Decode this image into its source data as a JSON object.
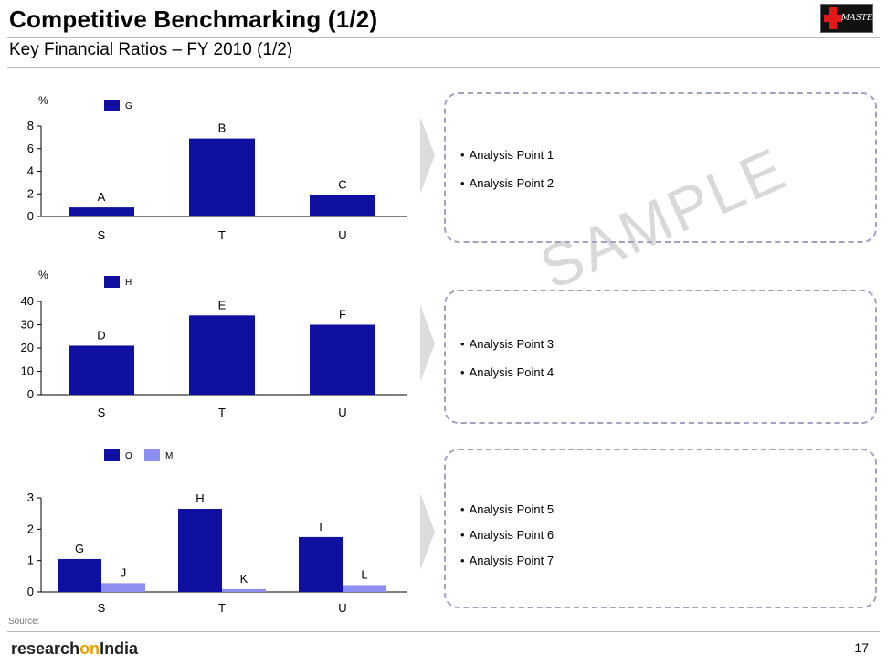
{
  "header": {
    "title": "Competitive Benchmarking (1/2)",
    "subtitle": "Key Financial Ratios – FY 2010 (1/2)",
    "logo_text": "MASTERS"
  },
  "colors": {
    "dark_blue": "#1010a0",
    "light_blue": "#8c8ef0"
  },
  "chart_data": [
    {
      "type": "bar",
      "ylabel": "%",
      "categories": [
        "S",
        "T",
        "U"
      ],
      "ylim": [
        0,
        8
      ],
      "yticks": [
        0,
        2,
        4,
        6,
        8
      ],
      "series": [
        {
          "name": "G",
          "color": "#1010a0",
          "values": [
            0.8,
            6.9,
            1.9
          ],
          "labels": [
            "A",
            "B",
            "C"
          ]
        }
      ]
    },
    {
      "type": "bar",
      "ylabel": "%",
      "categories": [
        "S",
        "T",
        "U"
      ],
      "ylim": [
        0,
        40
      ],
      "yticks": [
        0,
        10,
        20,
        30,
        40
      ],
      "series": [
        {
          "name": "H",
          "color": "#1010a0",
          "values": [
            21,
            34,
            30
          ],
          "labels": [
            "D",
            "E",
            "F"
          ]
        }
      ]
    },
    {
      "type": "bar",
      "ylabel": "",
      "categories": [
        "S",
        "T",
        "U"
      ],
      "ylim": [
        0,
        3
      ],
      "yticks": [
        0,
        1,
        2,
        3
      ],
      "series": [
        {
          "name": "O",
          "color": "#1010a0",
          "values": [
            1.05,
            2.65,
            1.75
          ],
          "labels": [
            "G",
            "H",
            "I"
          ]
        },
        {
          "name": "M",
          "color": "#8c8ef0",
          "values": [
            0.28,
            0.09,
            0.22
          ],
          "labels": [
            "J",
            "K",
            "L"
          ]
        }
      ]
    }
  ],
  "analysis": [
    {
      "points": [
        "Analysis Point 1",
        "Analysis Point 2"
      ]
    },
    {
      "points": [
        "Analysis Point 3",
        "Analysis Point 4"
      ]
    },
    {
      "points": [
        "Analysis Point 5",
        "Analysis Point 6",
        "Analysis Point 7"
      ]
    }
  ],
  "watermark": "SAMPLE",
  "footer": {
    "source": "Source:",
    "brand_1": "research",
    "brand_2": "on",
    "brand_3": "India",
    "page_number": "17"
  }
}
